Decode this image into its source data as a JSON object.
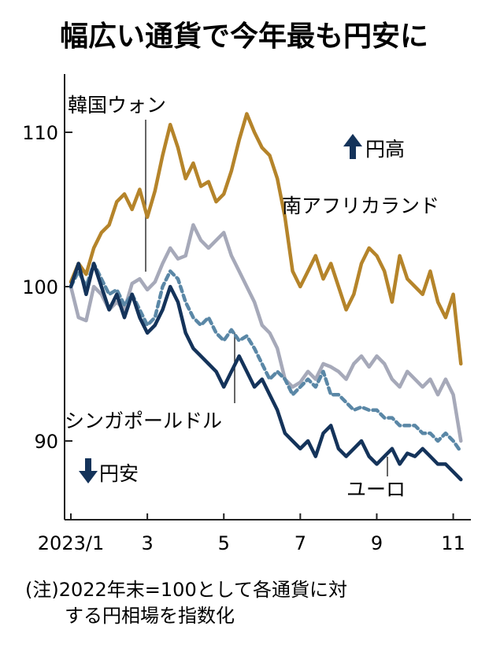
{
  "chart_data": {
    "type": "line",
    "title": "幅広い通貨で今年最も円安に",
    "xlabel": "",
    "ylabel": "",
    "ylim": [
      85,
      114
    ],
    "x_ticks": [
      {
        "month": 0,
        "label": "2023/1"
      },
      {
        "month": 2,
        "label": "3"
      },
      {
        "month": 4,
        "label": "5"
      },
      {
        "month": 6,
        "label": "7"
      },
      {
        "month": 8,
        "label": "9"
      },
      {
        "month": 10,
        "label": "11"
      }
    ],
    "y_ticks": [
      {
        "value": 90,
        "label": "90"
      },
      {
        "value": 100,
        "label": "100"
      },
      {
        "value": 110,
        "label": "110"
      }
    ],
    "annotations": {
      "up": "円高",
      "down": "円安",
      "note_line1": "(注)2022年末=100として各通貨に対",
      "note_line2": "する円相場を指数化"
    },
    "series": [
      {
        "name": "南アフリカランド",
        "color": "#b5842a",
        "dashed": false,
        "x": [
          0,
          0.2,
          0.4,
          0.6,
          0.8,
          1.0,
          1.2,
          1.4,
          1.6,
          1.8,
          2.0,
          2.2,
          2.4,
          2.6,
          2.8,
          3.0,
          3.2,
          3.4,
          3.6,
          3.8,
          4.0,
          4.2,
          4.4,
          4.6,
          4.8,
          5.0,
          5.2,
          5.4,
          5.6,
          5.8,
          6.0,
          6.2,
          6.4,
          6.6,
          6.8,
          7.0,
          7.2,
          7.4,
          7.6,
          7.8,
          8.0,
          8.2,
          8.4,
          8.6,
          8.8,
          9.0,
          9.2,
          9.4,
          9.6,
          9.8,
          10.0,
          10.2
        ],
        "values": [
          100.3,
          101.5,
          100.8,
          102.5,
          103.5,
          104.0,
          105.5,
          106.0,
          105.0,
          106.3,
          104.5,
          106.2,
          108.5,
          110.5,
          109.0,
          107.0,
          108.0,
          106.5,
          106.8,
          105.5,
          106.0,
          107.5,
          109.5,
          111.2,
          110.0,
          109.0,
          108.5,
          107.0,
          104.5,
          101.0,
          100.0,
          101.0,
          102.0,
          100.5,
          101.5,
          100.0,
          98.5,
          99.5,
          101.5,
          102.5,
          102.0,
          101.0,
          99.0,
          102.0,
          100.5,
          100.0,
          99.5,
          101.0,
          99.0,
          98.0,
          99.5,
          95.0
        ]
      },
      {
        "name": "韓国ウォン",
        "color": "#a6a9b9",
        "dashed": false,
        "x": [
          0,
          0.2,
          0.4,
          0.6,
          0.8,
          1.0,
          1.2,
          1.4,
          1.6,
          1.8,
          2.0,
          2.2,
          2.4,
          2.6,
          2.8,
          3.0,
          3.2,
          3.4,
          3.6,
          3.8,
          4.0,
          4.2,
          4.4,
          4.6,
          4.8,
          5.0,
          5.2,
          5.4,
          5.6,
          5.8,
          6.0,
          6.2,
          6.4,
          6.6,
          6.8,
          7.0,
          7.2,
          7.4,
          7.6,
          7.8,
          8.0,
          8.2,
          8.4,
          8.6,
          8.8,
          9.0,
          9.2,
          9.4,
          9.6,
          9.8,
          10.0,
          10.2
        ],
        "values": [
          100.0,
          98.0,
          97.8,
          100.0,
          99.5,
          98.5,
          99.0,
          98.5,
          100.2,
          100.5,
          99.8,
          100.3,
          101.5,
          102.5,
          101.8,
          102.0,
          104.0,
          103.0,
          102.5,
          103.0,
          103.5,
          102.0,
          101.0,
          100.0,
          99.0,
          97.5,
          97.0,
          96.0,
          94.0,
          93.5,
          93.8,
          94.5,
          94.0,
          95.0,
          94.8,
          94.5,
          94.0,
          95.0,
          95.5,
          94.8,
          95.5,
          95.0,
          94.0,
          93.5,
          94.5,
          94.0,
          93.5,
          94.0,
          93.0,
          94.0,
          93.0,
          90.0
        ]
      },
      {
        "name": "シンガポールドル",
        "color": "#5a87a6",
        "dashed": true,
        "x": [
          0,
          0.2,
          0.4,
          0.6,
          0.8,
          1.0,
          1.2,
          1.4,
          1.6,
          1.8,
          2.0,
          2.2,
          2.4,
          2.6,
          2.8,
          3.0,
          3.2,
          3.4,
          3.6,
          3.8,
          4.0,
          4.2,
          4.4,
          4.6,
          4.8,
          5.0,
          5.2,
          5.4,
          5.6,
          5.8,
          6.0,
          6.2,
          6.4,
          6.6,
          6.8,
          7.0,
          7.2,
          7.4,
          7.6,
          7.8,
          8.0,
          8.2,
          8.4,
          8.6,
          8.8,
          9.0,
          9.2,
          9.4,
          9.6,
          9.8,
          10.0,
          10.2
        ],
        "values": [
          100.0,
          101.0,
          100.0,
          101.5,
          100.5,
          99.5,
          99.8,
          98.8,
          99.5,
          98.5,
          97.5,
          98.0,
          100.0,
          101.0,
          100.5,
          99.0,
          98.0,
          97.5,
          98.0,
          97.0,
          96.5,
          97.2,
          96.5,
          96.8,
          96.0,
          95.0,
          94.0,
          94.5,
          94.0,
          93.0,
          93.5,
          94.0,
          93.5,
          94.5,
          93.0,
          93.0,
          92.5,
          92.0,
          92.2,
          92.0,
          92.0,
          91.5,
          91.5,
          91.0,
          91.0,
          91.0,
          90.5,
          90.5,
          90.0,
          90.5,
          90.0,
          89.3
        ]
      },
      {
        "name": "ユーロ",
        "color": "#14335a",
        "dashed": false,
        "x": [
          0,
          0.2,
          0.4,
          0.6,
          0.8,
          1.0,
          1.2,
          1.4,
          1.6,
          1.8,
          2.0,
          2.2,
          2.4,
          2.6,
          2.8,
          3.0,
          3.2,
          3.4,
          3.6,
          3.8,
          4.0,
          4.2,
          4.4,
          4.6,
          4.8,
          5.0,
          5.2,
          5.4,
          5.6,
          5.8,
          6.0,
          6.2,
          6.4,
          6.6,
          6.8,
          7.0,
          7.2,
          7.4,
          7.6,
          7.8,
          8.0,
          8.2,
          8.4,
          8.6,
          8.8,
          9.0,
          9.2,
          9.4,
          9.6,
          9.8,
          10.0,
          10.2
        ],
        "values": [
          100.0,
          101.5,
          99.5,
          101.5,
          100.0,
          98.5,
          99.5,
          98.0,
          99.5,
          98.0,
          97.0,
          97.5,
          98.5,
          100.0,
          99.0,
          97.0,
          96.0,
          95.5,
          95.0,
          94.5,
          93.5,
          94.5,
          95.5,
          94.5,
          93.5,
          94.0,
          93.0,
          92.0,
          90.5,
          90.0,
          89.5,
          90.0,
          89.0,
          90.5,
          91.0,
          89.5,
          89.0,
          89.5,
          90.0,
          89.0,
          88.5,
          89.0,
          89.5,
          88.5,
          89.2,
          89.0,
          89.5,
          89.0,
          88.5,
          88.5,
          88.0,
          87.5
        ]
      }
    ],
    "series_labels": [
      {
        "series": 0,
        "text": "南アフリカランド"
      },
      {
        "series": 1,
        "text": "韓国ウォン"
      },
      {
        "series": 2,
        "text": "シンガポールドル"
      },
      {
        "series": 3,
        "text": "ユーロ"
      }
    ]
  }
}
